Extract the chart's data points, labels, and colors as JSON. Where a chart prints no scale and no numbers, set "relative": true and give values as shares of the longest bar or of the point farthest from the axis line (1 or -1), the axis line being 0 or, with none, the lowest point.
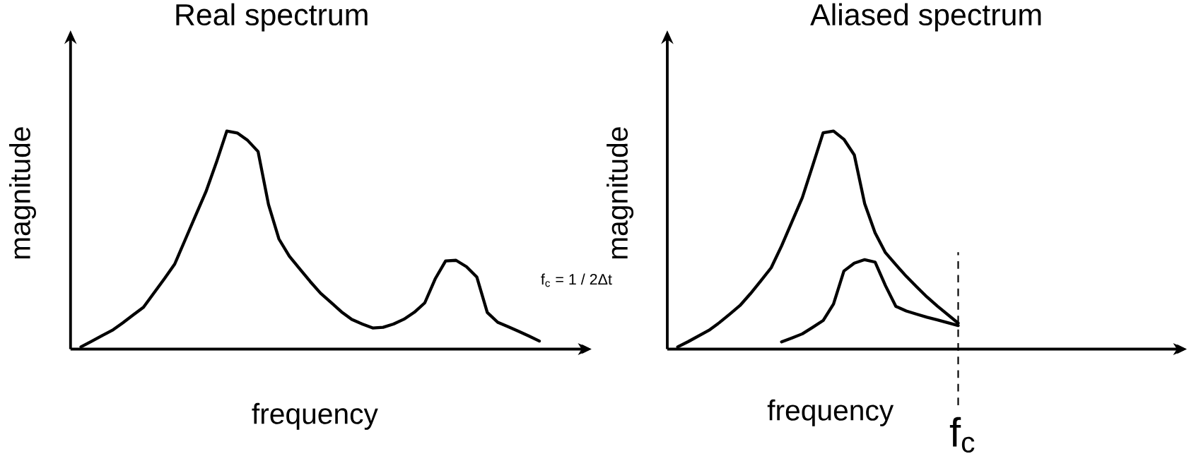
{
  "chart_data": [
    {
      "type": "line",
      "title": "Real spectrum",
      "xlabel": "frequency",
      "ylabel": "magnitude",
      "relative": true,
      "marker": "none",
      "categories": [
        null,
        null,
        null,
        null,
        null,
        null,
        null,
        null,
        null,
        null,
        null,
        null,
        null,
        null,
        null,
        null,
        null,
        null,
        null,
        null,
        null,
        null,
        null,
        null,
        null,
        null,
        null,
        null,
        null,
        null,
        null,
        null,
        null,
        null,
        null,
        null,
        null,
        null,
        null,
        null,
        null,
        null,
        null,
        null,
        null
      ],
      "series": [
        {
          "color": "#000000",
          "values": [
            0.01,
            0.035,
            0.061,
            0.086,
            0.12,
            0.156,
            0.192,
            0.257,
            0.322,
            0.39,
            0.501,
            0.612,
            0.722,
            0.856,
            1.0,
            0.991,
            0.957,
            0.906,
            0.663,
            0.505,
            0.426,
            0.368,
            0.31,
            0.256,
            0.214,
            0.171,
            0.136,
            0.115,
            0.097,
            0.1,
            0.115,
            0.137,
            0.169,
            0.212,
            0.322,
            0.404,
            0.407,
            0.378,
            0.33,
            0.168,
            0.123,
            0.103,
            0.082,
            0.06,
            0.037
          ]
        }
      ]
    },
    {
      "type": "line",
      "title": "Aliased spectrum",
      "xlabel": "frequency",
      "ylabel": "magnitude",
      "relative": true,
      "marker": "none",
      "annotations": [
        "f$_{c}$ = 1 / 2Δt",
        "f$_{c}$"
      ],
      "categories": [
        null,
        null,
        null,
        null,
        null,
        null,
        null,
        null,
        null,
        null,
        null,
        null,
        null,
        null,
        null,
        null,
        null,
        null,
        null,
        null,
        null,
        null,
        null,
        null,
        null,
        null,
        null,
        null
      ],
      "series": [
        {
          "color": "#000000",
          "values": [
            0.01,
            0.034,
            0.06,
            0.086,
            0.121,
            0.16,
            0.2,
            0.254,
            0.313,
            0.373,
            0.473,
            0.584,
            0.695,
            0.842,
            0.992,
            1.0,
            0.962,
            0.89,
            0.667,
            0.533,
            0.442,
            0.387,
            0.334,
            0.286,
            0.239,
            0.197,
            0.158,
            0.119
          ]
        },
        {
          "color": "#000000",
          "values": [
            null,
            null,
            null,
            null,
            null,
            null,
            null,
            null,
            null,
            null,
            0.033,
            0.051,
            0.07,
            0.1,
            0.131,
            0.207,
            0.358,
            0.394,
            0.41,
            0.399,
            0.291,
            0.196,
            0.175,
            0.16,
            0.146,
            0.134,
            0.121,
            0.108
          ]
        }
      ]
    }
  ]
}
